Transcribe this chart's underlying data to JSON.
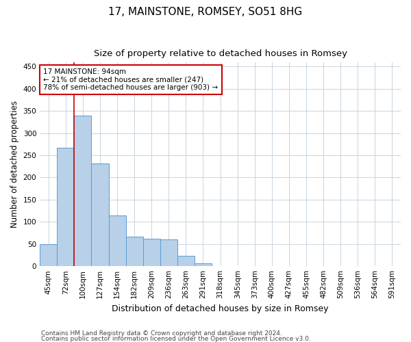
{
  "title": "17, MAINSTONE, ROMSEY, SO51 8HG",
  "subtitle": "Size of property relative to detached houses in Romsey",
  "xlabel": "Distribution of detached houses by size in Romsey",
  "ylabel": "Number of detached properties",
  "footer_line1": "Contains HM Land Registry data © Crown copyright and database right 2024.",
  "footer_line2": "Contains public sector information licensed under the Open Government Licence v3.0.",
  "categories": [
    "45sqm",
    "72sqm",
    "100sqm",
    "127sqm",
    "154sqm",
    "182sqm",
    "209sqm",
    "236sqm",
    "263sqm",
    "291sqm",
    "318sqm",
    "345sqm",
    "373sqm",
    "400sqm",
    "427sqm",
    "455sqm",
    "482sqm",
    "509sqm",
    "536sqm",
    "564sqm",
    "591sqm"
  ],
  "values": [
    50,
    267,
    340,
    232,
    114,
    67,
    62,
    61,
    24,
    7,
    1,
    0,
    1,
    0,
    1,
    0,
    0,
    0,
    0,
    0,
    1
  ],
  "bar_color": "#b8d0e8",
  "bar_edgecolor": "#5b9bd5",
  "bar_width": 1.0,
  "ylim": [
    0,
    460
  ],
  "yticks": [
    0,
    50,
    100,
    150,
    200,
    250,
    300,
    350,
    400,
    450
  ],
  "red_line_x": 1.5,
  "annotation_text": "17 MAINSTONE: 94sqm\n← 21% of detached houses are smaller (247)\n78% of semi-detached houses are larger (903) →",
  "annotation_box_color": "#ffffff",
  "annotation_box_edgecolor": "#cc0000",
  "background_color": "#ffffff",
  "grid_color": "#c8d4e0",
  "title_fontsize": 11,
  "subtitle_fontsize": 9.5,
  "ylabel_fontsize": 8.5,
  "xlabel_fontsize": 9,
  "tick_fontsize": 7.5,
  "footer_fontsize": 6.5,
  "ann_fontsize": 7.5
}
